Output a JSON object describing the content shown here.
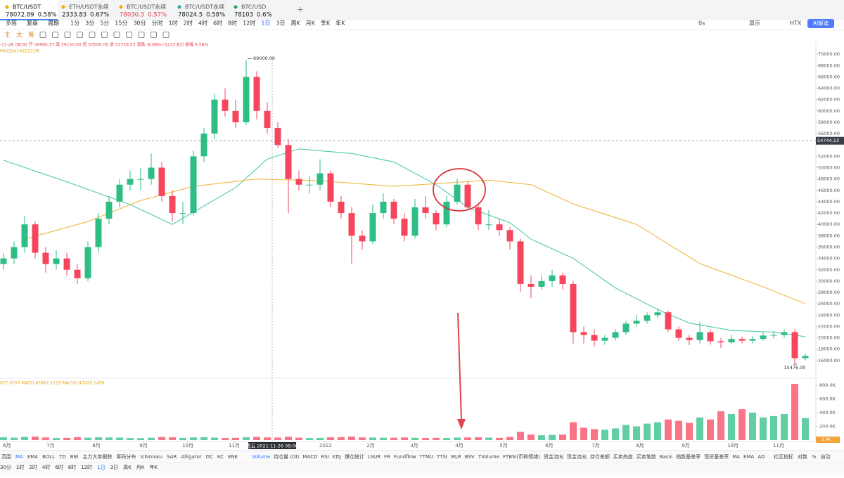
{
  "tabs": [
    {
      "symbol": "BTC/USDT",
      "price": "78072.89",
      "change": "0.58%",
      "color": "#1a1a1a"
    },
    {
      "symbol": "ETH/USDT永续",
      "price": "2333.83",
      "change": "0.67%",
      "color": "#1a1a1a"
    },
    {
      "symbol": "BTC/USDT永续",
      "price": "78030.3",
      "change": "0.57%",
      "color": "#e8424f"
    },
    {
      "symbol": "BTC/USDT永续",
      "price": "78024.5",
      "change": "0.58%",
      "color": "#1a1a1a"
    },
    {
      "symbol": "BTC/USD",
      "price": "78103",
      "change": "0.6%",
      "color": "#1a1a1a"
    }
  ],
  "toolbar": {
    "left": [
      "多简",
      "复盘",
      "周期"
    ],
    "intervals": [
      "1分",
      "3分",
      "5分",
      "15分",
      "30分",
      "分时",
      "1时",
      "2时",
      "4时",
      "6时",
      "8时",
      "12时",
      "1日",
      "3日",
      "周K",
      "月K",
      "季K",
      "年K"
    ],
    "active_interval": "1日",
    "right": [
      "0s",
      "显示",
      "HTX"
    ],
    "ai_button": "AI解读",
    "drawing": [
      "主",
      "太",
      "筹"
    ]
  },
  "info": {
    "ohlc": "-11-26 08:00 开 56960.37 高 59150.00 低 53500.00 收 53726.53 涨跌 -8.88%(-5233.83) 振幅 9.58%",
    "ma": "MA(20d):49113.06",
    "volume": "027.6707  MA(5):45867.1219  MA(10):47420.1496"
  },
  "indicators": {
    "main": [
      "范围",
      "MA",
      "EMA",
      "BOLL",
      "TD",
      "BBI",
      "主力大单跟踪",
      "筹码分布",
      "Ichimoku",
      "SAR",
      "Alligator",
      "DC",
      "KC",
      "ENE"
    ],
    "sub": [
      "Volume",
      "持仓量 (OI)",
      "MACD",
      "RSI",
      "KDJ",
      "爆仓统计",
      "LSUR",
      "FR",
      "Fundflow",
      "TTMU",
      "TTSI",
      "MLR",
      "BSV",
      "TVolume",
      "FTBSI(币种情绪)",
      "资金流向",
      "现金流向",
      "持仓差额",
      "买卖热度",
      "买卖笔数",
      "Basis",
      "指数基差率",
      "现货基差率",
      "MA",
      "EMA",
      "AO"
    ],
    "right": [
      "社区指标",
      "对数",
      "%",
      "自动"
    ]
  },
  "bottom_intervals": [
    "30分",
    "1时",
    "2时",
    "4时",
    "6时",
    "8时",
    "12时",
    "1日",
    "3日",
    "周K",
    "月K",
    "年K"
  ],
  "chart_data": {
    "type": "candlestick",
    "up_color": "#2ebd85",
    "down_color": "#f6465d",
    "xlim": [
      -0.333,
      76.667
    ],
    "ylim": [
      14000,
      72000
    ],
    "yticks": [
      {
        "value": 16000,
        "label": "16000.00"
      },
      {
        "value": 18000,
        "label": "18000.00"
      },
      {
        "value": 20000,
        "label": "20000.00"
      },
      {
        "value": 22000,
        "label": "22000.00"
      },
      {
        "value": 24000,
        "label": "24000.00"
      },
      {
        "value": 26000,
        "label": "26000.00"
      },
      {
        "value": 28000,
        "label": "28000.00"
      },
      {
        "value": 30000,
        "label": "30000.00"
      },
      {
        "value": 32000,
        "label": "32000.00"
      },
      {
        "value": 34000,
        "label": "34000.00"
      },
      {
        "value": 36000,
        "label": "36000.00"
      },
      {
        "value": 38000,
        "label": "38000.00"
      },
      {
        "value": 40000,
        "label": "40000.00"
      },
      {
        "value": 42000,
        "label": "42000.00"
      },
      {
        "value": 44000,
        "label": "44000.00"
      },
      {
        "value": 46000,
        "label": "46000.00"
      },
      {
        "value": 48000,
        "label": "48000.00"
      },
      {
        "value": 50000,
        "label": "50000.00"
      },
      {
        "value": 52000,
        "label": "52000.00"
      },
      {
        "value": 56000,
        "label": "56000.00"
      },
      {
        "value": 58000,
        "label": "58000.00"
      },
      {
        "value": 60000,
        "label": "60000.00"
      },
      {
        "value": 62000,
        "label": "62000.00"
      },
      {
        "value": 64000,
        "label": "64000.00"
      },
      {
        "value": 66000,
        "label": "66000.00"
      },
      {
        "value": 68000,
        "label": "68000.00"
      },
      {
        "value": 70000,
        "label": "70000.00"
      }
    ],
    "xticks": [
      {
        "value": 0.33,
        "label": "6月"
      },
      {
        "value": 4.47,
        "label": "7月"
      },
      {
        "value": 8.8,
        "label": "8月"
      },
      {
        "value": 13.27,
        "label": "9月"
      },
      {
        "value": 17.47,
        "label": "10月"
      },
      {
        "value": 21.87,
        "label": "11月"
      },
      {
        "value": 30.53,
        "label": "2022"
      },
      {
        "value": 34.8,
        "label": "2月"
      },
      {
        "value": 38.93,
        "label": "3月"
      },
      {
        "value": 43.2,
        "label": "4月"
      },
      {
        "value": 47.4,
        "label": "5月"
      },
      {
        "value": 51.73,
        "label": "6月"
      },
      {
        "value": 56.13,
        "label": "7月"
      },
      {
        "value": 60.33,
        "label": "8月"
      },
      {
        "value": 64.67,
        "label": "9月"
      },
      {
        "value": 69.13,
        "label": "10月"
      },
      {
        "value": 73.47,
        "label": "11月"
      }
    ],
    "crosshair": {
      "value": 25.47,
      "label": "周五 2021-11-26 08:00"
    },
    "last_price": {
      "value": 54744.13,
      "label": "54744.13"
    },
    "high_label": {
      "index": 23,
      "value": 69000,
      "label": "69000.00"
    },
    "low_label": {
      "index": 75,
      "value": 15476,
      "label": "15476.00"
    },
    "candles": [
      [
        33000,
        35000,
        32000,
        34000
      ],
      [
        34000,
        37000,
        33000,
        36000
      ],
      [
        36000,
        41500,
        35000,
        40000
      ],
      [
        40000,
        40500,
        34000,
        35000
      ],
      [
        35000,
        36000,
        31500,
        33000
      ],
      [
        33000,
        35500,
        32000,
        34000
      ],
      [
        34000,
        35000,
        31000,
        32000
      ],
      [
        32000,
        33000,
        29500,
        30500
      ],
      [
        30500,
        37000,
        30000,
        36000
      ],
      [
        36000,
        42000,
        35000,
        41000
      ],
      [
        41000,
        45000,
        40000,
        44000
      ],
      [
        44000,
        48000,
        43000,
        47000
      ],
      [
        47000,
        49500,
        46000,
        48000
      ],
      [
        48000,
        50000,
        46000,
        48000
      ],
      [
        48000,
        52500,
        47000,
        50000
      ],
      [
        50000,
        51000,
        44000,
        45000
      ],
      [
        45000,
        46000,
        40500,
        42000
      ],
      [
        42000,
        44000,
        40000,
        42000
      ],
      [
        42000,
        53000,
        41500,
        52000
      ],
      [
        52000,
        57000,
        51000,
        56000
      ],
      [
        56000,
        63000,
        55000,
        62000
      ],
      [
        62000,
        64000,
        59000,
        60000
      ],
      [
        60000,
        62000,
        57000,
        58000
      ],
      [
        58000,
        69000,
        57500,
        66000
      ],
      [
        66000,
        67000,
        58500,
        60000
      ],
      [
        60000,
        61500,
        56000,
        57000
      ],
      [
        57000,
        58000,
        53500,
        54000
      ],
      [
        54000,
        55000,
        42000,
        48000
      ],
      [
        48000,
        49500,
        46000,
        47000
      ],
      [
        47000,
        48500,
        45500,
        47000
      ],
      [
        47000,
        51500,
        46000,
        49000
      ],
      [
        49000,
        49500,
        43000,
        44000
      ],
      [
        44000,
        45000,
        41000,
        42000
      ],
      [
        42000,
        43000,
        33000,
        38000
      ],
      [
        38000,
        39000,
        35500,
        37000
      ],
      [
        37000,
        43500,
        36500,
        42000
      ],
      [
        42000,
        45500,
        41000,
        44000
      ],
      [
        44000,
        44500,
        40000,
        41000
      ],
      [
        41000,
        42000,
        37000,
        38000
      ],
      [
        38000,
        44500,
        37500,
        43000
      ],
      [
        43000,
        45000,
        41000,
        42000
      ],
      [
        42000,
        42500,
        39000,
        40000
      ],
      [
        40000,
        45000,
        39500,
        44000
      ],
      [
        44000,
        48000,
        43500,
        47000
      ],
      [
        47000,
        47500,
        42500,
        43000
      ],
      [
        43000,
        43500,
        39000,
        40000
      ],
      [
        40000,
        42500,
        39000,
        40000
      ],
      [
        40000,
        41000,
        38000,
        39000
      ],
      [
        39000,
        39500,
        35500,
        37000
      ],
      [
        37000,
        37500,
        28000,
        29500
      ],
      [
        29500,
        31000,
        27000,
        29000
      ],
      [
        29000,
        31000,
        28500,
        30000
      ],
      [
        30000,
        32000,
        29000,
        31000
      ],
      [
        31000,
        31500,
        28500,
        29500
      ],
      [
        29500,
        30000,
        19000,
        21000
      ],
      [
        21000,
        22000,
        19000,
        20500
      ],
      [
        20500,
        21500,
        18500,
        19500
      ],
      [
        19500,
        20500,
        18800,
        20000
      ],
      [
        20000,
        21500,
        19500,
        21000
      ],
      [
        21000,
        23000,
        20500,
        22500
      ],
      [
        22500,
        24000,
        22000,
        23000
      ],
      [
        23000,
        24500,
        22500,
        24000
      ],
      [
        24000,
        25200,
        23500,
        24500
      ],
      [
        24500,
        24800,
        21000,
        21500
      ],
      [
        21500,
        22000,
        19500,
        20000
      ],
      [
        20000,
        20500,
        18700,
        19600
      ],
      [
        19600,
        22800,
        19000,
        21000
      ],
      [
        21000,
        21500,
        18800,
        19400
      ],
      [
        19400,
        20000,
        18200,
        19200
      ],
      [
        19200,
        20500,
        18900,
        19800
      ],
      [
        19800,
        20200,
        19000,
        19500
      ],
      [
        19500,
        20300,
        19000,
        19800
      ],
      [
        19800,
        21000,
        19500,
        20400
      ],
      [
        20400,
        21200,
        19900,
        20500
      ],
      [
        20500,
        21500,
        20000,
        21000
      ],
      [
        21000,
        21500,
        15476,
        16400
      ],
      [
        16400,
        17200,
        16000,
        16800
      ]
    ],
    "ma_lines": [
      {
        "color": "#4cc9b0",
        "x": [
          0,
          6,
          12,
          16,
          22,
          25,
          28,
          33,
          37,
          41,
          44,
          48,
          50,
          54,
          58,
          62,
          65,
          69,
          73,
          76
        ],
        "values": [
          51300,
          47500,
          43500,
          40000,
          46500,
          51500,
          53300,
          52500,
          51000,
          47000,
          43000,
          40300,
          37400,
          34000,
          28800,
          25000,
          22600,
          21300,
          21000,
          20200
        ]
      },
      {
        "color": "#f0b944",
        "x": [
          2,
          8,
          13,
          18,
          24,
          30,
          37,
          42,
          46,
          50,
          54,
          60,
          66,
          72,
          76
        ],
        "values": [
          37400,
          40500,
          44200,
          46700,
          48000,
          47700,
          46700,
          47300,
          47800,
          47000,
          43600,
          40000,
          33100,
          29000,
          26000
        ]
      }
    ],
    "volume": {
      "ylim": [
        0,
        840000
      ],
      "yticks": [
        {
          "value": 200000,
          "label": "200.0K"
        },
        {
          "value": 400000,
          "label": "400.0K"
        },
        {
          "value": 600000,
          "label": "600.0K"
        },
        {
          "value": 800000,
          "label": "800.0K"
        }
      ],
      "last": "2.4K",
      "values": [
        40000,
        35000,
        45000,
        50000,
        38000,
        30000,
        32000,
        42000,
        35000,
        40000,
        38000,
        36000,
        30000,
        28000,
        34000,
        45000,
        40000,
        32000,
        38000,
        42000,
        35000,
        30000,
        33000,
        40000,
        45000,
        38000,
        36000,
        48000,
        35000,
        30000,
        32000,
        40000,
        42000,
        50000,
        38000,
        36000,
        34000,
        35000,
        38000,
        33000,
        30000,
        32000,
        30000,
        36000,
        38000,
        40000,
        35000,
        32000,
        45000,
        120000,
        80000,
        70000,
        75000,
        80000,
        260000,
        180000,
        160000,
        150000,
        170000,
        220000,
        200000,
        240000,
        260000,
        300000,
        280000,
        250000,
        330000,
        300000,
        420000,
        380000,
        450000,
        400000,
        330000,
        350000,
        380000,
        820000,
        320000
      ]
    }
  }
}
